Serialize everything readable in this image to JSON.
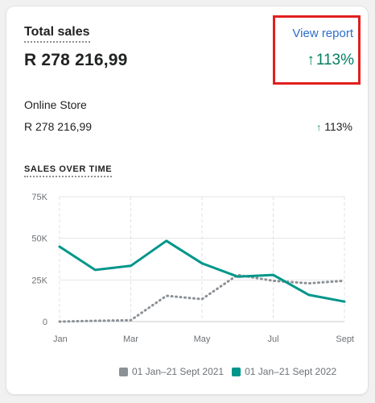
{
  "card": {
    "title": "Total sales",
    "total": "R 278 216,99",
    "view_report_label": "View report",
    "change_pct": "113%",
    "arrow_glyph": "↑",
    "highlight_color": "#e0201e"
  },
  "breakdown": {
    "label": "Online Store",
    "value": "R 278 216,99",
    "change_pct": "113%",
    "arrow_glyph": "↑"
  },
  "section_title": "SALES OVER TIME",
  "colors": {
    "accent": "#008060",
    "link": "#2c6ecb",
    "current_series": "#00968a",
    "previous_series": "#8c9196"
  },
  "chart_data": {
    "type": "line",
    "title": "",
    "xlabel": "",
    "ylabel": "",
    "x": [
      0,
      1,
      2,
      3,
      4,
      5,
      6,
      7,
      8
    ],
    "x_tick_labels": [
      "Jan",
      "Mar",
      "May",
      "Jul",
      "Sept"
    ],
    "x_tick_positions": [
      0,
      2,
      4,
      6,
      8
    ],
    "y_tick_labels": [
      "0",
      "25K",
      "50K",
      "75K"
    ],
    "y_tick_values": [
      0,
      25000,
      50000,
      75000
    ],
    "ylim": [
      0,
      75000
    ],
    "grid": true,
    "legend_placement": "bottom-right",
    "series": [
      {
        "name": "01 Jan–21 Sept 2021",
        "style": "dotted",
        "color": "#8c9196",
        "values": [
          0,
          500,
          800,
          15500,
          13500,
          28000,
          24500,
          23000,
          24500
        ]
      },
      {
        "name": "01 Jan–21 Sept 2022",
        "style": "solid",
        "color": "#00968a",
        "values": [
          45000,
          31000,
          33500,
          48500,
          35000,
          27000,
          28000,
          16000,
          12000
        ]
      }
    ]
  }
}
